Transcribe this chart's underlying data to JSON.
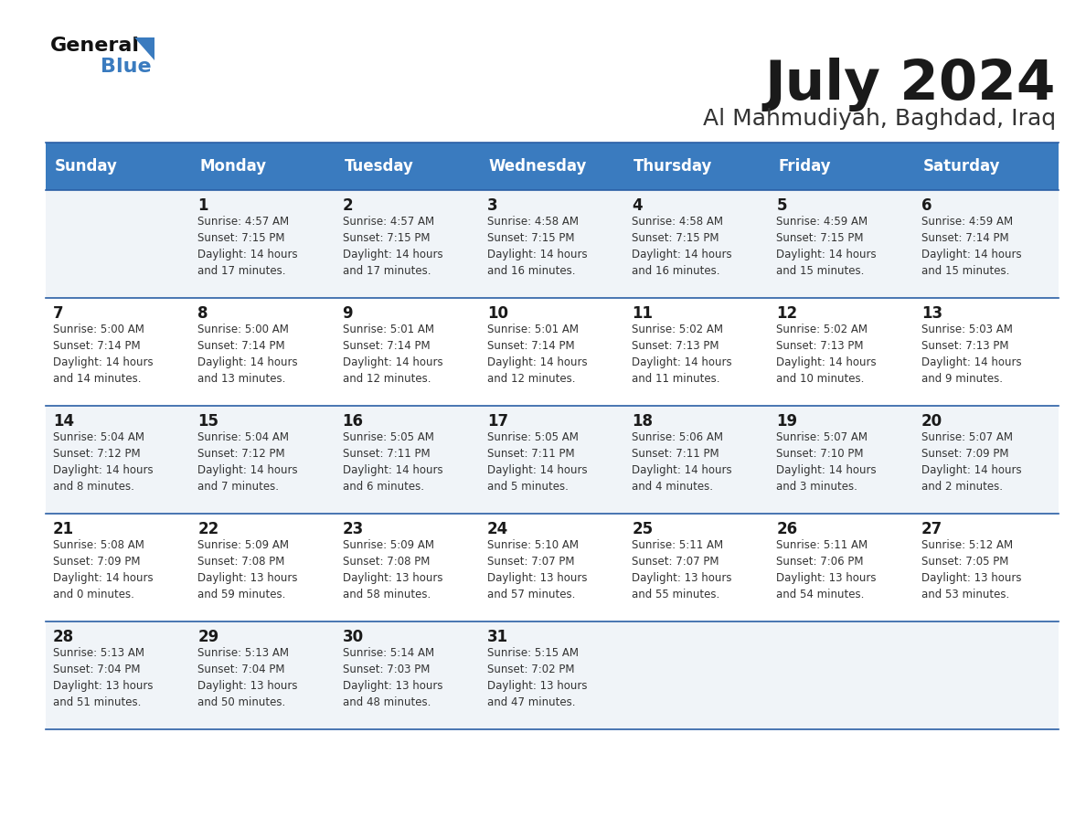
{
  "title": "July 2024",
  "subtitle": "Al Mahmudiyah, Baghdad, Iraq",
  "header_bg_color": "#3a7bbf",
  "header_text_color": "#ffffff",
  "odd_row_bg": "#f0f4f8",
  "even_row_bg": "#ffffff",
  "border_color": "#2a5fa5",
  "days_of_week": [
    "Sunday",
    "Monday",
    "Tuesday",
    "Wednesday",
    "Thursday",
    "Friday",
    "Saturday"
  ],
  "weeks": [
    {
      "days": [
        {
          "day": "",
          "info": ""
        },
        {
          "day": "1",
          "info": "Sunrise: 4:57 AM\nSunset: 7:15 PM\nDaylight: 14 hours\nand 17 minutes."
        },
        {
          "day": "2",
          "info": "Sunrise: 4:57 AM\nSunset: 7:15 PM\nDaylight: 14 hours\nand 17 minutes."
        },
        {
          "day": "3",
          "info": "Sunrise: 4:58 AM\nSunset: 7:15 PM\nDaylight: 14 hours\nand 16 minutes."
        },
        {
          "day": "4",
          "info": "Sunrise: 4:58 AM\nSunset: 7:15 PM\nDaylight: 14 hours\nand 16 minutes."
        },
        {
          "day": "5",
          "info": "Sunrise: 4:59 AM\nSunset: 7:15 PM\nDaylight: 14 hours\nand 15 minutes."
        },
        {
          "day": "6",
          "info": "Sunrise: 4:59 AM\nSunset: 7:14 PM\nDaylight: 14 hours\nand 15 minutes."
        }
      ]
    },
    {
      "days": [
        {
          "day": "7",
          "info": "Sunrise: 5:00 AM\nSunset: 7:14 PM\nDaylight: 14 hours\nand 14 minutes."
        },
        {
          "day": "8",
          "info": "Sunrise: 5:00 AM\nSunset: 7:14 PM\nDaylight: 14 hours\nand 13 minutes."
        },
        {
          "day": "9",
          "info": "Sunrise: 5:01 AM\nSunset: 7:14 PM\nDaylight: 14 hours\nand 12 minutes."
        },
        {
          "day": "10",
          "info": "Sunrise: 5:01 AM\nSunset: 7:14 PM\nDaylight: 14 hours\nand 12 minutes."
        },
        {
          "day": "11",
          "info": "Sunrise: 5:02 AM\nSunset: 7:13 PM\nDaylight: 14 hours\nand 11 minutes."
        },
        {
          "day": "12",
          "info": "Sunrise: 5:02 AM\nSunset: 7:13 PM\nDaylight: 14 hours\nand 10 minutes."
        },
        {
          "day": "13",
          "info": "Sunrise: 5:03 AM\nSunset: 7:13 PM\nDaylight: 14 hours\nand 9 minutes."
        }
      ]
    },
    {
      "days": [
        {
          "day": "14",
          "info": "Sunrise: 5:04 AM\nSunset: 7:12 PM\nDaylight: 14 hours\nand 8 minutes."
        },
        {
          "day": "15",
          "info": "Sunrise: 5:04 AM\nSunset: 7:12 PM\nDaylight: 14 hours\nand 7 minutes."
        },
        {
          "day": "16",
          "info": "Sunrise: 5:05 AM\nSunset: 7:11 PM\nDaylight: 14 hours\nand 6 minutes."
        },
        {
          "day": "17",
          "info": "Sunrise: 5:05 AM\nSunset: 7:11 PM\nDaylight: 14 hours\nand 5 minutes."
        },
        {
          "day": "18",
          "info": "Sunrise: 5:06 AM\nSunset: 7:11 PM\nDaylight: 14 hours\nand 4 minutes."
        },
        {
          "day": "19",
          "info": "Sunrise: 5:07 AM\nSunset: 7:10 PM\nDaylight: 14 hours\nand 3 minutes."
        },
        {
          "day": "20",
          "info": "Sunrise: 5:07 AM\nSunset: 7:09 PM\nDaylight: 14 hours\nand 2 minutes."
        }
      ]
    },
    {
      "days": [
        {
          "day": "21",
          "info": "Sunrise: 5:08 AM\nSunset: 7:09 PM\nDaylight: 14 hours\nand 0 minutes."
        },
        {
          "day": "22",
          "info": "Sunrise: 5:09 AM\nSunset: 7:08 PM\nDaylight: 13 hours\nand 59 minutes."
        },
        {
          "day": "23",
          "info": "Sunrise: 5:09 AM\nSunset: 7:08 PM\nDaylight: 13 hours\nand 58 minutes."
        },
        {
          "day": "24",
          "info": "Sunrise: 5:10 AM\nSunset: 7:07 PM\nDaylight: 13 hours\nand 57 minutes."
        },
        {
          "day": "25",
          "info": "Sunrise: 5:11 AM\nSunset: 7:07 PM\nDaylight: 13 hours\nand 55 minutes."
        },
        {
          "day": "26",
          "info": "Sunrise: 5:11 AM\nSunset: 7:06 PM\nDaylight: 13 hours\nand 54 minutes."
        },
        {
          "day": "27",
          "info": "Sunrise: 5:12 AM\nSunset: 7:05 PM\nDaylight: 13 hours\nand 53 minutes."
        }
      ]
    },
    {
      "days": [
        {
          "day": "28",
          "info": "Sunrise: 5:13 AM\nSunset: 7:04 PM\nDaylight: 13 hours\nand 51 minutes."
        },
        {
          "day": "29",
          "info": "Sunrise: 5:13 AM\nSunset: 7:04 PM\nDaylight: 13 hours\nand 50 minutes."
        },
        {
          "day": "30",
          "info": "Sunrise: 5:14 AM\nSunset: 7:03 PM\nDaylight: 13 hours\nand 48 minutes."
        },
        {
          "day": "31",
          "info": "Sunrise: 5:15 AM\nSunset: 7:02 PM\nDaylight: 13 hours\nand 47 minutes."
        },
        {
          "day": "",
          "info": ""
        },
        {
          "day": "",
          "info": ""
        },
        {
          "day": "",
          "info": ""
        }
      ]
    }
  ],
  "logo_general_color": "#111111",
  "logo_blue_color": "#3a7bbf",
  "logo_triangle_color": "#3a7bbf",
  "title_color": "#1a1a1a",
  "subtitle_color": "#333333"
}
